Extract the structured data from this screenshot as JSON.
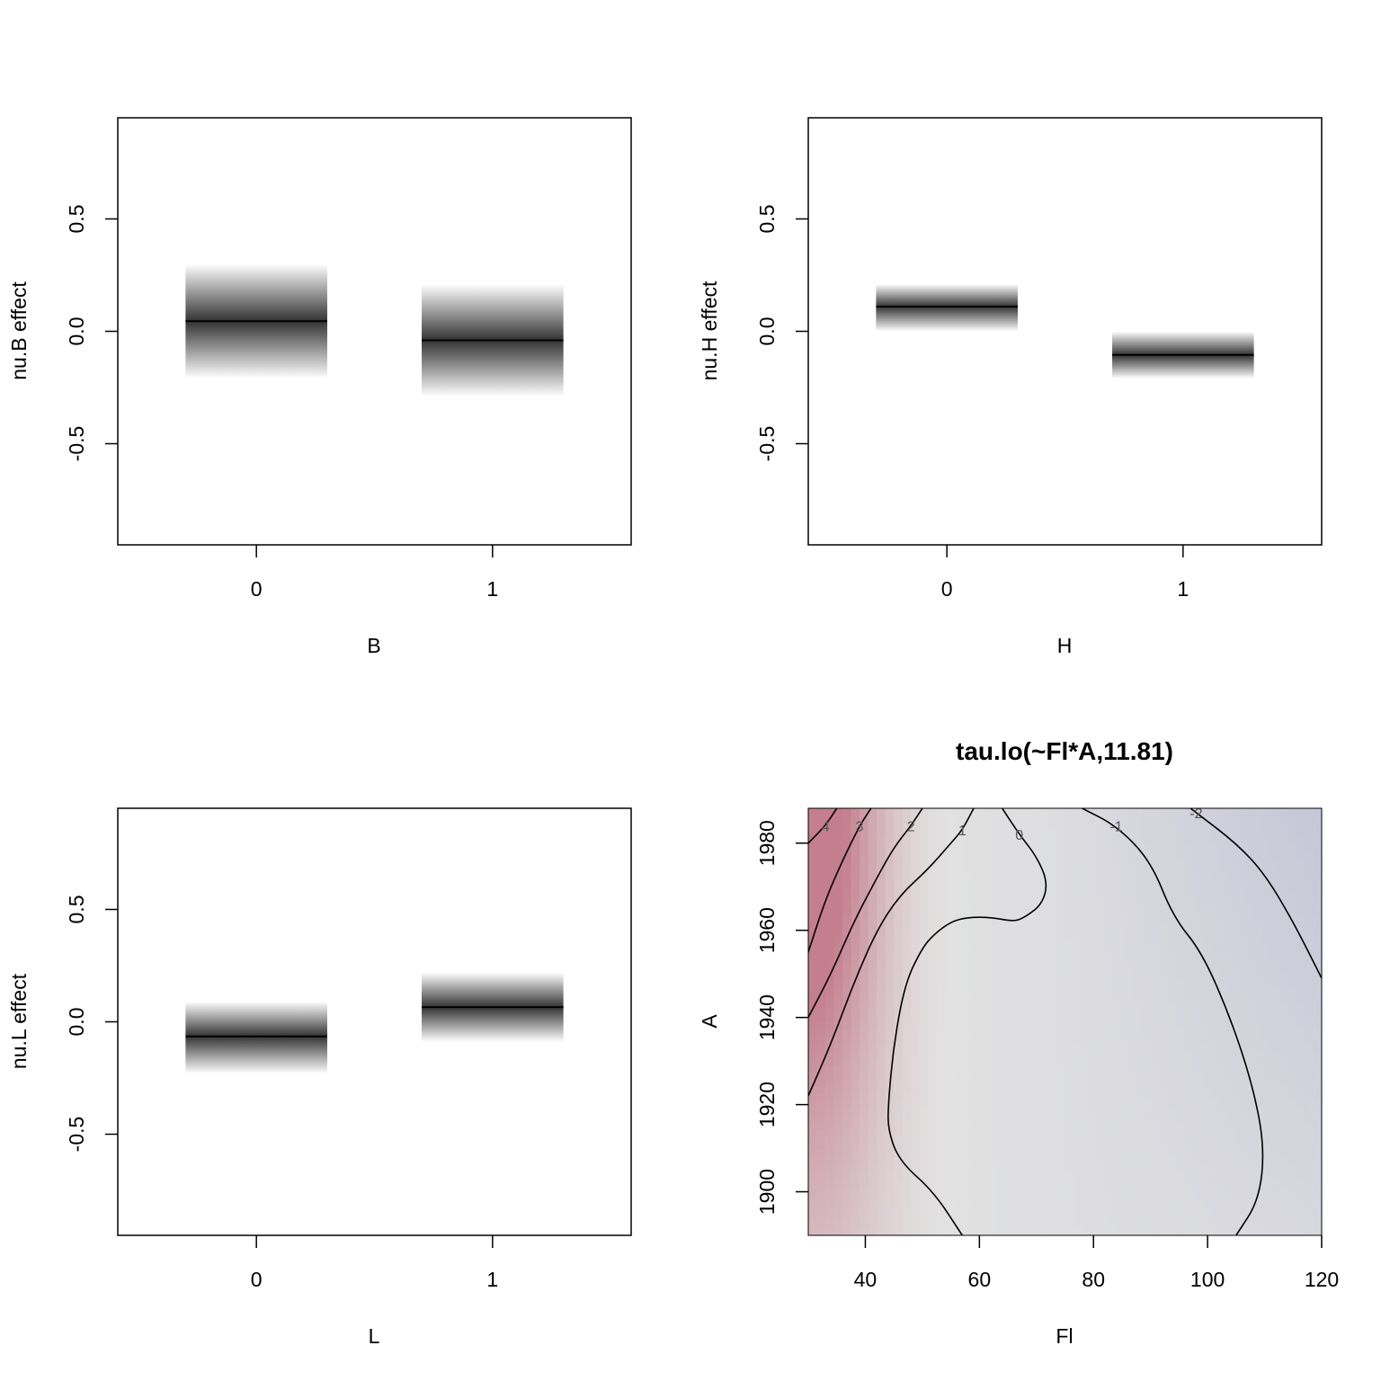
{
  "chart_data": [
    {
      "type": "bar",
      "xlabel": "B",
      "ylabel": "nu.B effect",
      "categories": [
        "0",
        "1"
      ],
      "estimates": [
        0.045,
        -0.04
      ],
      "band_lower": [
        -0.21,
        -0.29
      ],
      "band_upper": [
        0.3,
        0.21
      ],
      "ylim": [
        -0.95,
        0.95
      ],
      "yticks": [
        -0.5,
        0.0,
        0.5
      ],
      "ytick_labels": [
        "-0.5",
        "0.0",
        "0.5"
      ]
    },
    {
      "type": "bar",
      "xlabel": "H",
      "ylabel": "nu.H effect",
      "categories": [
        "0",
        "1"
      ],
      "estimates": [
        0.11,
        -0.105
      ],
      "band_lower": [
        0.0,
        -0.21
      ],
      "band_upper": [
        0.21,
        0.0
      ],
      "ylim": [
        -0.95,
        0.95
      ],
      "yticks": [
        -0.5,
        0.0,
        0.5
      ],
      "ytick_labels": [
        "-0.5",
        "0.0",
        "0.5"
      ]
    },
    {
      "type": "bar",
      "xlabel": "L",
      "ylabel": "nu.L effect",
      "categories": [
        "0",
        "1"
      ],
      "estimates": [
        -0.065,
        0.065
      ],
      "band_lower": [
        -0.23,
        -0.09
      ],
      "band_upper": [
        0.09,
        0.22
      ],
      "ylim": [
        -0.95,
        0.95
      ],
      "yticks": [
        -0.5,
        0.0,
        0.5
      ],
      "ytick_labels": [
        "-0.5",
        "0.0",
        "0.5"
      ]
    },
    {
      "type": "heatmap",
      "title": "tau.lo(~Fl*A,11.81)",
      "xlabel": "Fl",
      "ylabel": "A",
      "xlim": [
        30,
        120
      ],
      "ylim": [
        1890,
        1988
      ],
      "xticks": [
        40,
        60,
        80,
        100,
        120
      ],
      "yticks": [
        1900,
        1920,
        1940,
        1960,
        1980
      ],
      "color_positive": "#c47e8e",
      "color_neutral": "#e2e2e2",
      "color_negative": "#c2c3d6",
      "contours": [
        {
          "level": "4",
          "points": [
            [
              30,
              1980
            ],
            [
              33,
              1984
            ],
            [
              35,
              1988
            ]
          ]
        },
        {
          "level": "3",
          "points": [
            [
              30,
              1955
            ],
            [
              33,
              1967
            ],
            [
              36,
              1976
            ],
            [
              39,
              1984
            ],
            [
              41,
              1988
            ]
          ]
        },
        {
          "level": "2",
          "points": [
            [
              30,
              1940
            ],
            [
              34,
              1950
            ],
            [
              38,
              1962
            ],
            [
              42,
              1972
            ],
            [
              45,
              1979
            ],
            [
              48,
              1984
            ],
            [
              50,
              1988
            ]
          ]
        },
        {
          "level": "1",
          "points": [
            [
              30,
              1922
            ],
            [
              34,
              1934
            ],
            [
              38,
              1948
            ],
            [
              42,
              1960
            ],
            [
              46,
              1968
            ],
            [
              51,
              1974
            ],
            [
              55,
              1980
            ],
            [
              57,
              1983
            ],
            [
              59,
              1988
            ]
          ]
        },
        {
          "level": "0",
          "points": [
            [
              57,
              1890
            ],
            [
              52,
              1900
            ],
            [
              46,
              1907
            ],
            [
              44,
              1914
            ],
            [
              44,
              1920
            ],
            [
              45,
              1934
            ],
            [
              47,
              1948
            ],
            [
              50,
              1956
            ],
            [
              52,
              1959
            ],
            [
              55,
              1962
            ],
            [
              58,
              1963
            ],
            [
              62,
              1963
            ],
            [
              66,
              1962
            ],
            [
              68,
              1963
            ],
            [
              71,
              1966
            ],
            [
              72,
              1971
            ],
            [
              70,
              1977
            ],
            [
              67,
              1982
            ],
            [
              64,
              1988
            ]
          ]
        },
        {
          "level": "-1",
          "points": [
            [
              105,
              1890
            ],
            [
              109,
              1898
            ],
            [
              110,
              1910
            ],
            [
              108,
              1924
            ],
            [
              104,
              1940
            ],
            [
              99,
              1955
            ],
            [
              94,
              1963
            ],
            [
              90,
              1976
            ],
            [
              84,
              1984
            ],
            [
              78,
              1988
            ]
          ]
        },
        {
          "level": "-2",
          "points": [
            [
              120,
              1949
            ],
            [
              115,
              1962
            ],
            [
              110,
              1973
            ],
            [
              105,
              1980
            ],
            [
              98,
              1987
            ],
            [
              97,
              1988
            ]
          ]
        }
      ]
    }
  ]
}
